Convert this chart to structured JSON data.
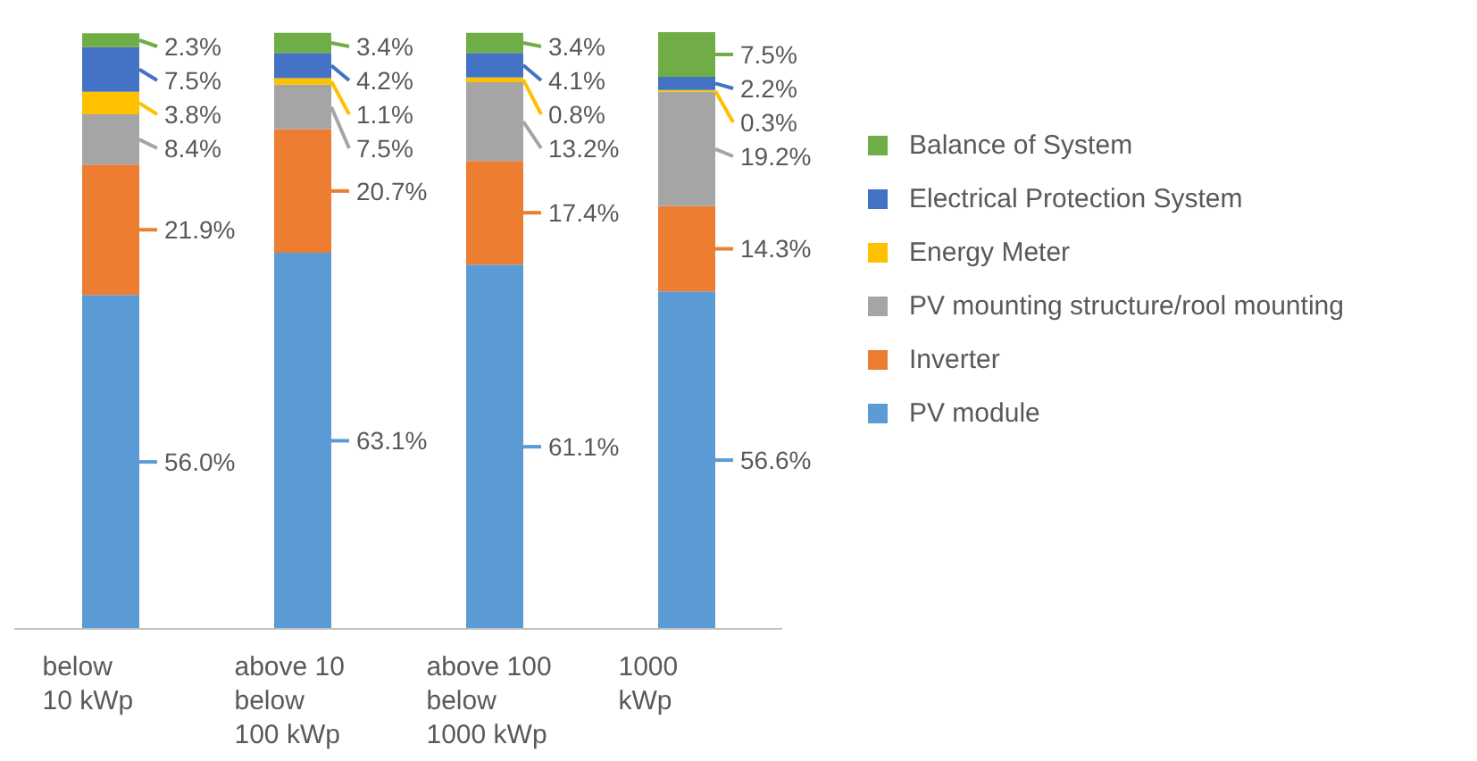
{
  "chart_data": {
    "type": "bar",
    "stacked": true,
    "legend": "right",
    "tick_labels": "x",
    "categories": [
      "below\n10 kWp",
      "above 10\nbelow\n100 kWp",
      "above 100\nbelow\n1000 kWp",
      "1000\nkWp"
    ],
    "series": [
      {
        "name": "PV module",
        "color": "#5b9bd5",
        "values": [
          56.0,
          63.1,
          61.1,
          56.6
        ],
        "value_labels": [
          "56.0%",
          "63.1%",
          "61.1%",
          "56.6%"
        ]
      },
      {
        "name": "Inverter",
        "color": "#ed7d31",
        "values": [
          21.9,
          20.7,
          17.4,
          14.3
        ],
        "value_labels": [
          "21.9%",
          "20.7%",
          "17.4%",
          "14.3%"
        ]
      },
      {
        "name": "PV mounting structure/rool mounting",
        "color": "#a5a5a5",
        "values": [
          8.4,
          7.5,
          13.2,
          19.2
        ],
        "value_labels": [
          "8.4%",
          "7.5%",
          "13.2%",
          "19.2%"
        ]
      },
      {
        "name": "Energy Meter",
        "color": "#ffc000",
        "values": [
          3.8,
          1.1,
          0.8,
          0.3
        ],
        "value_labels": [
          "3.8%",
          "1.1%",
          "0.8%",
          "0.3%"
        ]
      },
      {
        "name": "Electrical Protection System",
        "color": "#4472c4",
        "values": [
          7.5,
          4.2,
          4.1,
          2.2
        ],
        "value_labels": [
          "7.5%",
          "4.2%",
          "4.1%",
          "2.2%"
        ]
      },
      {
        "name": "Balance of System",
        "color": "#70ad47",
        "values": [
          2.3,
          3.4,
          3.4,
          7.5
        ],
        "value_labels": [
          "2.3%",
          "3.4%",
          "3.4%",
          "7.5%"
        ]
      }
    ]
  }
}
